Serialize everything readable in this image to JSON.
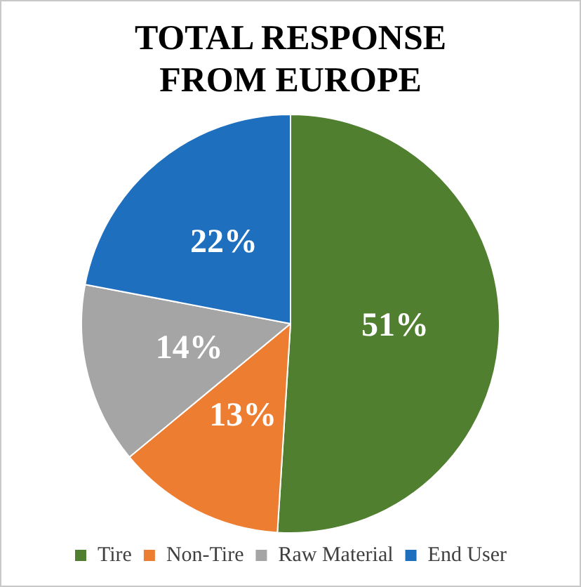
{
  "chart_data": {
    "type": "pie",
    "title": "TOTAL RESPONSE FROM EUROPE",
    "categories": [
      "Tire",
      "Non-Tire",
      "Raw Material",
      "End User"
    ],
    "values": [
      51,
      13,
      14,
      22
    ],
    "colors": [
      "#4f7f2f",
      "#ed7d31",
      "#a5a5a5",
      "#1f6fbf"
    ],
    "value_labels": [
      "51%",
      "13%",
      "14%",
      "22%"
    ],
    "legend": "bottom"
  }
}
